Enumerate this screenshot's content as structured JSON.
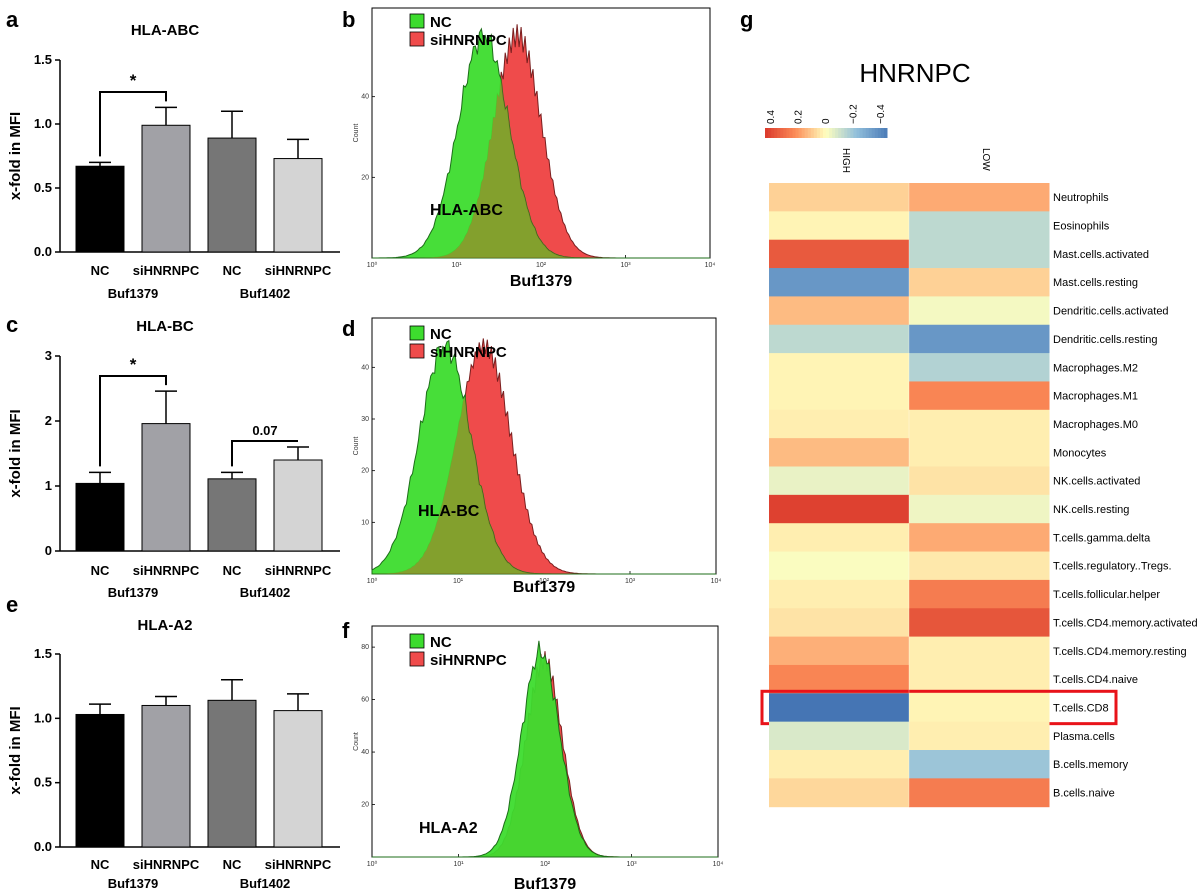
{
  "panel_labels": {
    "a": "a",
    "b": "b",
    "c": "c",
    "d": "d",
    "e": "e",
    "f": "f",
    "g": "g"
  },
  "bar_common": {
    "ylabel": "x-fold in MFI",
    "categories": [
      "NC",
      "siHNRNPC",
      "NC",
      "siHNRNPC"
    ],
    "groups": [
      "Buf1379",
      "Buf1402"
    ],
    "colors": [
      "#000000",
      "#a1a1a6",
      "#767676",
      "#d4d4d4"
    ]
  },
  "hist_common": {
    "xlabel": "Buf1379",
    "ylabel": "Count",
    "legend": [
      "NC",
      "siHNRNPC"
    ],
    "colors": {
      "nc": "#3ddc2e",
      "si": "#ef4b4b",
      "overlap": "#b5742c"
    },
    "xticks": [
      "10⁰",
      "10¹",
      "10²",
      "10³",
      "10⁴"
    ]
  },
  "chart_data": [
    {
      "id": "a",
      "type": "bar",
      "title": "HLA-ABC",
      "values": [
        0.67,
        0.99,
        0.89,
        0.73
      ],
      "errors": [
        0.03,
        0.14,
        0.21,
        0.15
      ],
      "ylim": [
        0,
        1.5
      ],
      "yticks": [
        "0.0",
        "0.5",
        "1.0",
        "1.5"
      ],
      "annotations": [
        {
          "text": "*",
          "from": 0,
          "to": 1
        }
      ]
    },
    {
      "id": "b",
      "type": "histogram",
      "label": "HLA-ABC",
      "yticks": [
        "20",
        "40"
      ],
      "ymax": 60,
      "series": [
        {
          "name": "NC",
          "peak_log": 1.32
        },
        {
          "name": "siHNRNPC",
          "peak_log": 1.72
        }
      ]
    },
    {
      "id": "c",
      "type": "bar",
      "title": "HLA-BC",
      "values": [
        1.04,
        1.96,
        1.11,
        1.4
      ],
      "errors": [
        0.17,
        0.5,
        0.1,
        0.2
      ],
      "ylim": [
        0,
        3
      ],
      "yticks": [
        "0",
        "1",
        "2",
        "3"
      ],
      "annotations": [
        {
          "text": "*",
          "from": 0,
          "to": 1
        },
        {
          "text": "0.07",
          "from": 2,
          "to": 3
        }
      ]
    },
    {
      "id": "d",
      "type": "histogram",
      "label": "HLA-BC",
      "yticks": [
        "10",
        "20",
        "30",
        "40"
      ],
      "ymax": 48,
      "series": [
        {
          "name": "NC",
          "peak_log": 0.85
        },
        {
          "name": "siHNRNPC",
          "peak_log": 1.3
        }
      ]
    },
    {
      "id": "e",
      "type": "bar",
      "title": "HLA-A2",
      "values": [
        1.03,
        1.1,
        1.14,
        1.06
      ],
      "errors": [
        0.08,
        0.07,
        0.16,
        0.13
      ],
      "ylim": [
        0,
        1.5
      ],
      "yticks": [
        "0.0",
        "0.5",
        "1.0",
        "1.5"
      ],
      "annotations": []
    },
    {
      "id": "f",
      "type": "histogram",
      "label": "HLA-A2",
      "yticks": [
        "20",
        "40",
        "60",
        "80"
      ],
      "ymax": 85,
      "series": [
        {
          "name": "NC",
          "peak_log": 1.95
        },
        {
          "name": "siHNRNPC",
          "peak_log": 1.99
        }
      ]
    },
    {
      "id": "g",
      "type": "heatmap",
      "title": "HNRNPC",
      "columns": [
        "HIGH",
        "LOW"
      ],
      "colorbar": {
        "ticks": [
          "0.4",
          "0.2",
          "0",
          "−0.2",
          "−0.4"
        ],
        "min": -0.4,
        "max": 0.4
      },
      "highlight": "T.cells.CD8",
      "rows": [
        {
          "name": "Neutrophils",
          "values": [
            0.08,
            0.15
          ]
        },
        {
          "name": "Eosinophils",
          "values": [
            0.02,
            -0.12
          ]
        },
        {
          "name": "Mast.cells.activated",
          "values": [
            0.32,
            -0.12
          ]
        },
        {
          "name": "Mast.cells.resting",
          "values": [
            -0.32,
            0.08
          ]
        },
        {
          "name": "Dendritic.cells.activated",
          "values": [
            0.12,
            -0.02
          ]
        },
        {
          "name": "Dendritic.cells.resting",
          "values": [
            -0.12,
            -0.32
          ]
        },
        {
          "name": "Macrophages.M2",
          "values": [
            0.02,
            -0.14
          ]
        },
        {
          "name": "Macrophages.M1",
          "values": [
            0.02,
            0.22
          ]
        },
        {
          "name": "Macrophages.M0",
          "values": [
            0.03,
            0.03
          ]
        },
        {
          "name": "Monocytes",
          "values": [
            0.12,
            0.03
          ]
        },
        {
          "name": "NK.cells.activated",
          "values": [
            -0.04,
            0.05
          ]
        },
        {
          "name": "NK.cells.resting",
          "values": [
            0.38,
            -0.03
          ]
        },
        {
          "name": "T.cells.gamma.delta",
          "values": [
            0.03,
            0.15
          ]
        },
        {
          "name": "T.cells.regulatory..Tregs.",
          "values": [
            -0.01,
            0.04
          ]
        },
        {
          "name": "T.cells.follicular.helper",
          "values": [
            0.03,
            0.24
          ]
        },
        {
          "name": "T.cells.CD4.memory.activated",
          "values": [
            0.05,
            0.33
          ]
        },
        {
          "name": "T.cells.CD4.memory.resting",
          "values": [
            0.14,
            0.03
          ]
        },
        {
          "name": "T.cells.CD4.naive",
          "values": [
            0.22,
            0.03
          ]
        },
        {
          "name": "T.cells.CD8",
          "values": [
            -0.42,
            0.02
          ]
        },
        {
          "name": "Plasma.cells",
          "values": [
            -0.07,
            0.03
          ]
        },
        {
          "name": "B.cells.memory",
          "values": [
            0.03,
            -0.18
          ]
        },
        {
          "name": "B.cells.naive",
          "values": [
            0.07,
            0.24
          ]
        }
      ]
    }
  ]
}
